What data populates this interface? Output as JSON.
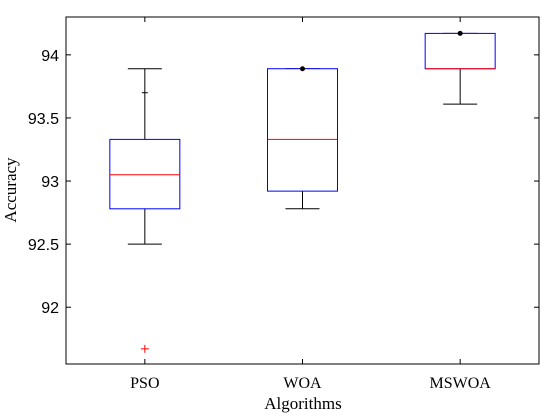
{
  "chart_data": {
    "type": "box",
    "title": "",
    "xlabel": "Algorithms",
    "ylabel": "Accuracy",
    "ylim": [
      91.55,
      94.3
    ],
    "yticks": [
      92,
      92.5,
      93,
      93.5,
      94
    ],
    "categories": [
      "PSO",
      "WOA",
      "MSWOA"
    ],
    "boxes": [
      {
        "category": "PSO",
        "whisker_low": 92.5,
        "q1": 92.78,
        "median": 93.05,
        "q3": 93.33,
        "whisker_high": 93.89,
        "extra_ticks": [
          93.7
        ],
        "outliers": [
          91.67
        ],
        "dots": []
      },
      {
        "category": "WOA",
        "whisker_low": 92.78,
        "q1": 92.92,
        "median": 93.33,
        "q3": 93.89,
        "whisker_high": 93.89,
        "extra_ticks": [],
        "outliers": [],
        "dots": [
          93.89
        ]
      },
      {
        "category": "MSWOA",
        "whisker_low": 93.61,
        "q1": 93.89,
        "median": 93.89,
        "q3": 94.17,
        "whisker_high": 94.17,
        "extra_ticks": [],
        "outliers": [],
        "dots": [
          94.17
        ]
      }
    ],
    "colors": {
      "box": "#0000ff",
      "median": "#ff0000",
      "whisker": "#000000",
      "outlier": "#ff0000",
      "dot": "#000000"
    },
    "grid": false,
    "legend": "none"
  }
}
